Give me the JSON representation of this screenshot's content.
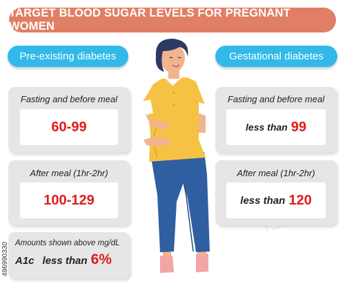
{
  "title": "TARGET BLOOD SUGAR LEVELS FOR PREGNANT WOMEN",
  "left": {
    "heading": "Pre-existing diabetes",
    "fasting_label": "Fasting and before meal",
    "fasting_value": "60-99",
    "after_label": "After meal (1hr-2hr)",
    "after_value": "100-129",
    "note": "Amounts shown above mg/dL",
    "a1c_label": "A1c",
    "a1c_prefix": "less than",
    "a1c_value": "6%"
  },
  "right": {
    "heading": "Gestational diabetes",
    "fasting_label": "Fasting and before meal",
    "fasting_prefix": "less than",
    "fasting_value": "99",
    "after_label": "After meal (1hr-2hr)",
    "after_prefix": "less than",
    "after_value": "120"
  },
  "stock_id": "496990330",
  "watermark": "iStock",
  "colors": {
    "title_bg": "#e07f66",
    "pill_bg": "#31b9ea",
    "card_bg": "#e6e6e6",
    "value_red": "#e01b1b",
    "shirt": "#f6c244",
    "jeans": "#2f5fa1",
    "hair": "#2c3a63",
    "skin": "#f2b48f"
  }
}
